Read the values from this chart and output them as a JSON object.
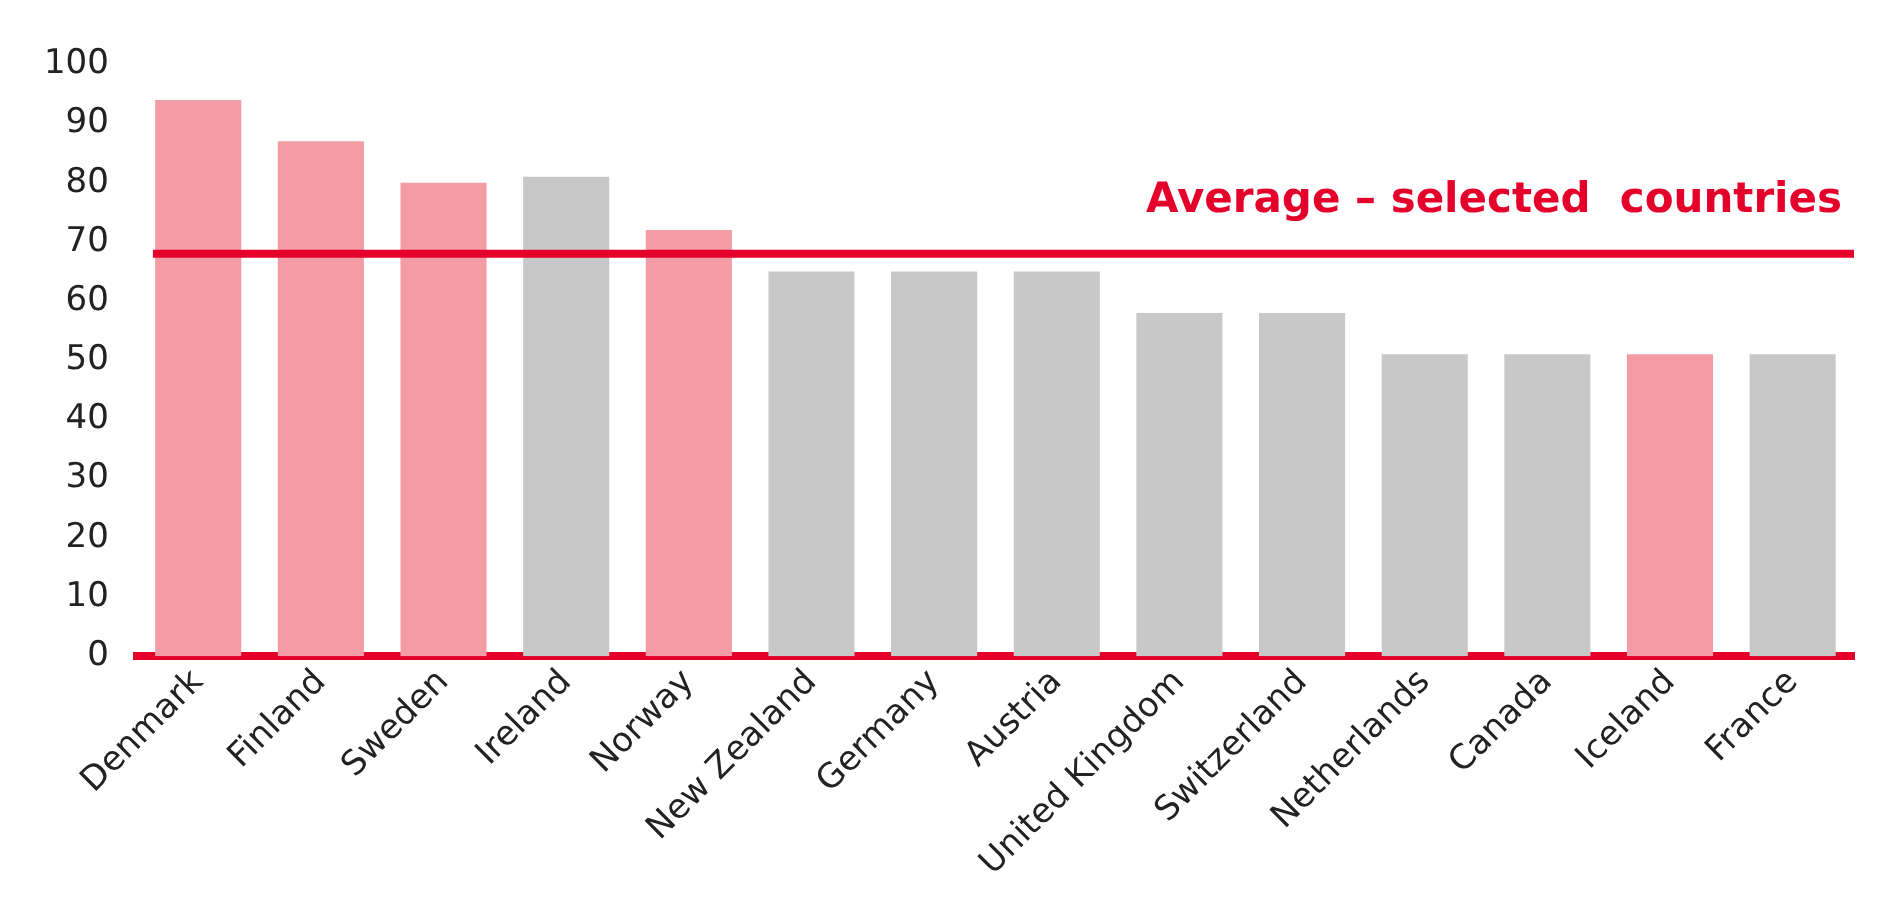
{
  "chart_data": {
    "type": "bar",
    "categories": [
      "Denmark",
      "Finland",
      "Sweden",
      "Ireland",
      "Norway",
      "New Zealand",
      "Germany",
      "Austria",
      "United Kingdom",
      "Switzerland",
      "Netherlands",
      "Canada",
      "Iceland",
      "France"
    ],
    "values": [
      94,
      87,
      80,
      81,
      72,
      65,
      65,
      65,
      58,
      58,
      51,
      51,
      51,
      51
    ],
    "colors": [
      "#f49ca6",
      "#f49ca6",
      "#f49ca6",
      "#c8c8c8",
      "#f49ca6",
      "#c8c8c8",
      "#c8c8c8",
      "#c8c8c8",
      "#c8c8c8",
      "#c8c8c8",
      "#c8c8c8",
      "#c8c8c8",
      "#f49ca6",
      "#c8c8c8"
    ],
    "ylim": [
      0,
      100
    ],
    "yticks": [
      0,
      10,
      20,
      30,
      40,
      50,
      60,
      70,
      80,
      90,
      100
    ],
    "grid": false,
    "legend": false,
    "ref_lines": [
      {
        "axis": "y",
        "value": 68,
        "label": "Average – selected  countries",
        "color": "#e4002b"
      }
    ]
  }
}
